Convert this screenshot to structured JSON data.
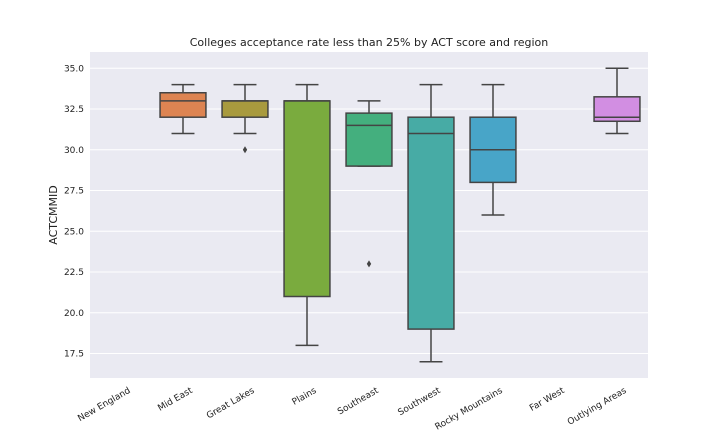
{
  "chart_data": {
    "type": "box",
    "title": "Colleges acceptance rate less than 25% by ACT score and region",
    "xlabel": "",
    "ylabel": "ACTCMMID",
    "ylim": [
      16.0,
      36.0
    ],
    "yticks": [
      17.5,
      20.0,
      22.5,
      25.0,
      27.5,
      30.0,
      32.5,
      35.0
    ],
    "ytick_labels": [
      "17.5",
      "20.0",
      "22.5",
      "25.0",
      "27.5",
      "30.0",
      "32.5",
      "35.0"
    ],
    "grid": true,
    "categories": [
      "New England",
      "Mid East",
      "Great Lakes",
      "Plains",
      "Southeast",
      "Southwest",
      "Rocky Mountains",
      "Far West",
      "Outlying Areas"
    ],
    "boxes": [
      null,
      {
        "whisker_low": 31.0,
        "q1": 32.0,
        "median": 33.0,
        "q3": 33.5,
        "whisker_high": 34.0,
        "outliers": [],
        "color": "#dd8452"
      },
      {
        "whisker_low": 31.0,
        "q1": 32.0,
        "median": 33.0,
        "q3": 33.0,
        "whisker_high": 34.0,
        "outliers": [
          30.0
        ],
        "color": "#a89a3e"
      },
      {
        "whisker_low": 18.0,
        "q1": 21.0,
        "median": 33.0,
        "q3": 33.0,
        "whisker_high": 34.0,
        "outliers": [],
        "color": "#7aab3e"
      },
      {
        "whisker_low": 29.0,
        "q1": 29.0,
        "median": 31.5,
        "q3": 32.25,
        "whisker_high": 33.0,
        "outliers": [
          23.0
        ],
        "color": "#44af7e"
      },
      {
        "whisker_low": 17.0,
        "q1": 19.0,
        "median": 31.0,
        "q3": 32.0,
        "whisker_high": 34.0,
        "outliers": [],
        "color": "#47aba5"
      },
      {
        "whisker_low": 26.0,
        "q1": 28.0,
        "median": 30.0,
        "q3": 32.0,
        "whisker_high": 34.0,
        "outliers": [],
        "color": "#48a5c8"
      },
      null,
      {
        "whisker_low": 31.0,
        "q1": 31.75,
        "median": 32.0,
        "q3": 33.25,
        "whisker_high": 35.0,
        "outliers": [],
        "color": "#d28ee2"
      }
    ]
  }
}
